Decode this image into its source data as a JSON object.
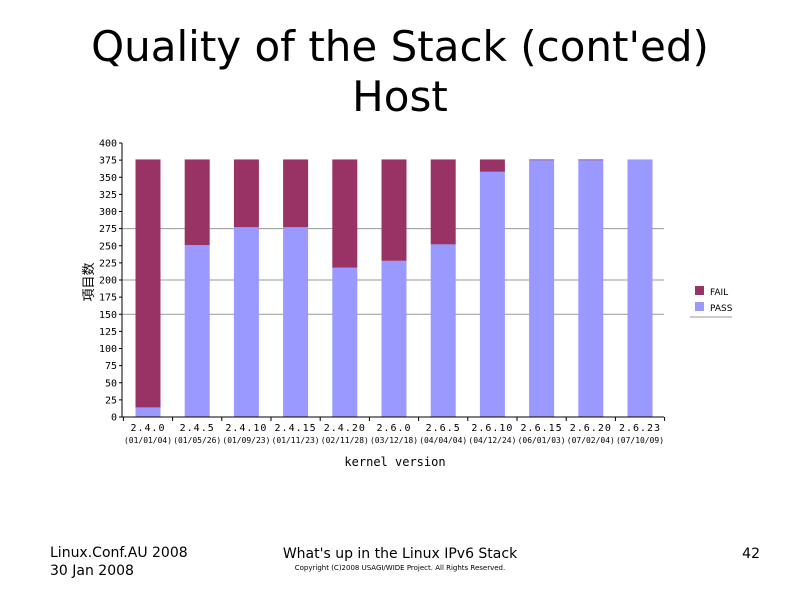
{
  "slide": {
    "title_line1": "Quality of the Stack (cont'ed)",
    "title_line2": "Host"
  },
  "footer": {
    "conference": "Linux.Conf.AU 2008",
    "date": "30 Jan 2008",
    "talk_title": "What's up in the Linux IPv6 Stack",
    "copyright": "Copyright (C)2008 USAGI/WIDE Project.  All Rights Reserved.",
    "page_number": "42"
  },
  "colors": {
    "fail": "#993366",
    "pass": "#9999ff",
    "grid": "#999999",
    "axis": "#000000"
  },
  "chart_data": {
    "type": "bar",
    "stacked": true,
    "xlabel": "kernel version",
    "ylabel": "項目数",
    "ylim": [
      0,
      400
    ],
    "ytick_step": 25,
    "categories": [
      "2.4.0",
      "2.4.5",
      "2.4.10",
      "2.4.15",
      "2.4.20",
      "2.6.0",
      "2.6.5",
      "2.6.10",
      "2.6.15",
      "2.6.20",
      "2.6.23"
    ],
    "category_dates": [
      "(01/01/04)",
      "(01/05/26)",
      "(01/09/23)",
      "(01/11/23)",
      "(02/11/28)",
      "(03/12/18)",
      "(04/04/04)",
      "(04/12/24)",
      "(06/01/03)",
      "(07/02/04)",
      "(07/10/09)"
    ],
    "series": [
      {
        "name": "PASS",
        "values": [
          14,
          251,
          277,
          277,
          218,
          228,
          252,
          358,
          375,
          375,
          376
        ]
      },
      {
        "name": "FAIL",
        "values": [
          362,
          125,
          99,
          99,
          158,
          148,
          124,
          18,
          1,
          1,
          0
        ]
      }
    ],
    "legend": {
      "position": "right"
    },
    "grid": true
  }
}
